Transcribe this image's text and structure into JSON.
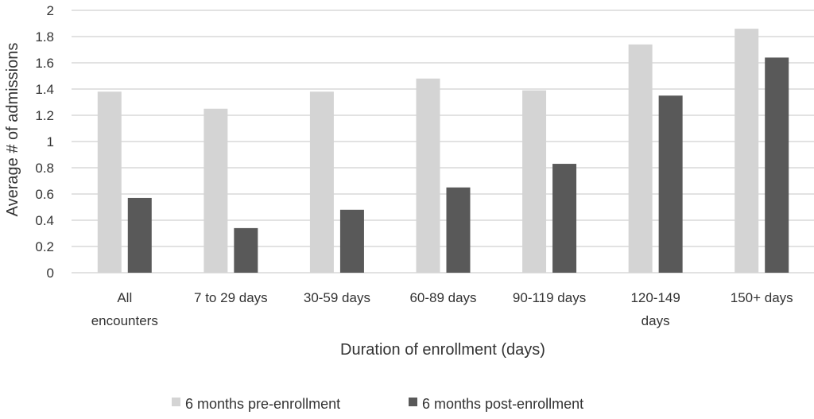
{
  "chart_data": {
    "type": "bar",
    "categories": [
      [
        "All",
        "encounters"
      ],
      [
        "7 to 29 days"
      ],
      [
        "30-59 days"
      ],
      [
        "60-89 days"
      ],
      [
        "90-119 days"
      ],
      [
        "120-149",
        "days"
      ],
      [
        "150+ days"
      ]
    ],
    "series": [
      {
        "name": "6 months pre-enrollment",
        "color": "#d4d4d4",
        "values": [
          1.38,
          1.25,
          1.38,
          1.48,
          1.39,
          1.74,
          1.86
        ]
      },
      {
        "name": "6 months post-enrollment",
        "color": "#595959",
        "values": [
          0.57,
          0.34,
          0.48,
          0.65,
          0.83,
          1.35,
          1.64
        ]
      }
    ],
    "y_ticks": [
      "0",
      "0.2",
      "0.4",
      "0.6",
      "0.8",
      "1",
      "1.2",
      "1.4",
      "1.6",
      "1.8",
      "2"
    ],
    "xlabel": "Duration of enrollment (days)",
    "ylabel": "Average # of admissions",
    "ylim": [
      0,
      2
    ],
    "grid": true,
    "legend_position": "bottom"
  }
}
